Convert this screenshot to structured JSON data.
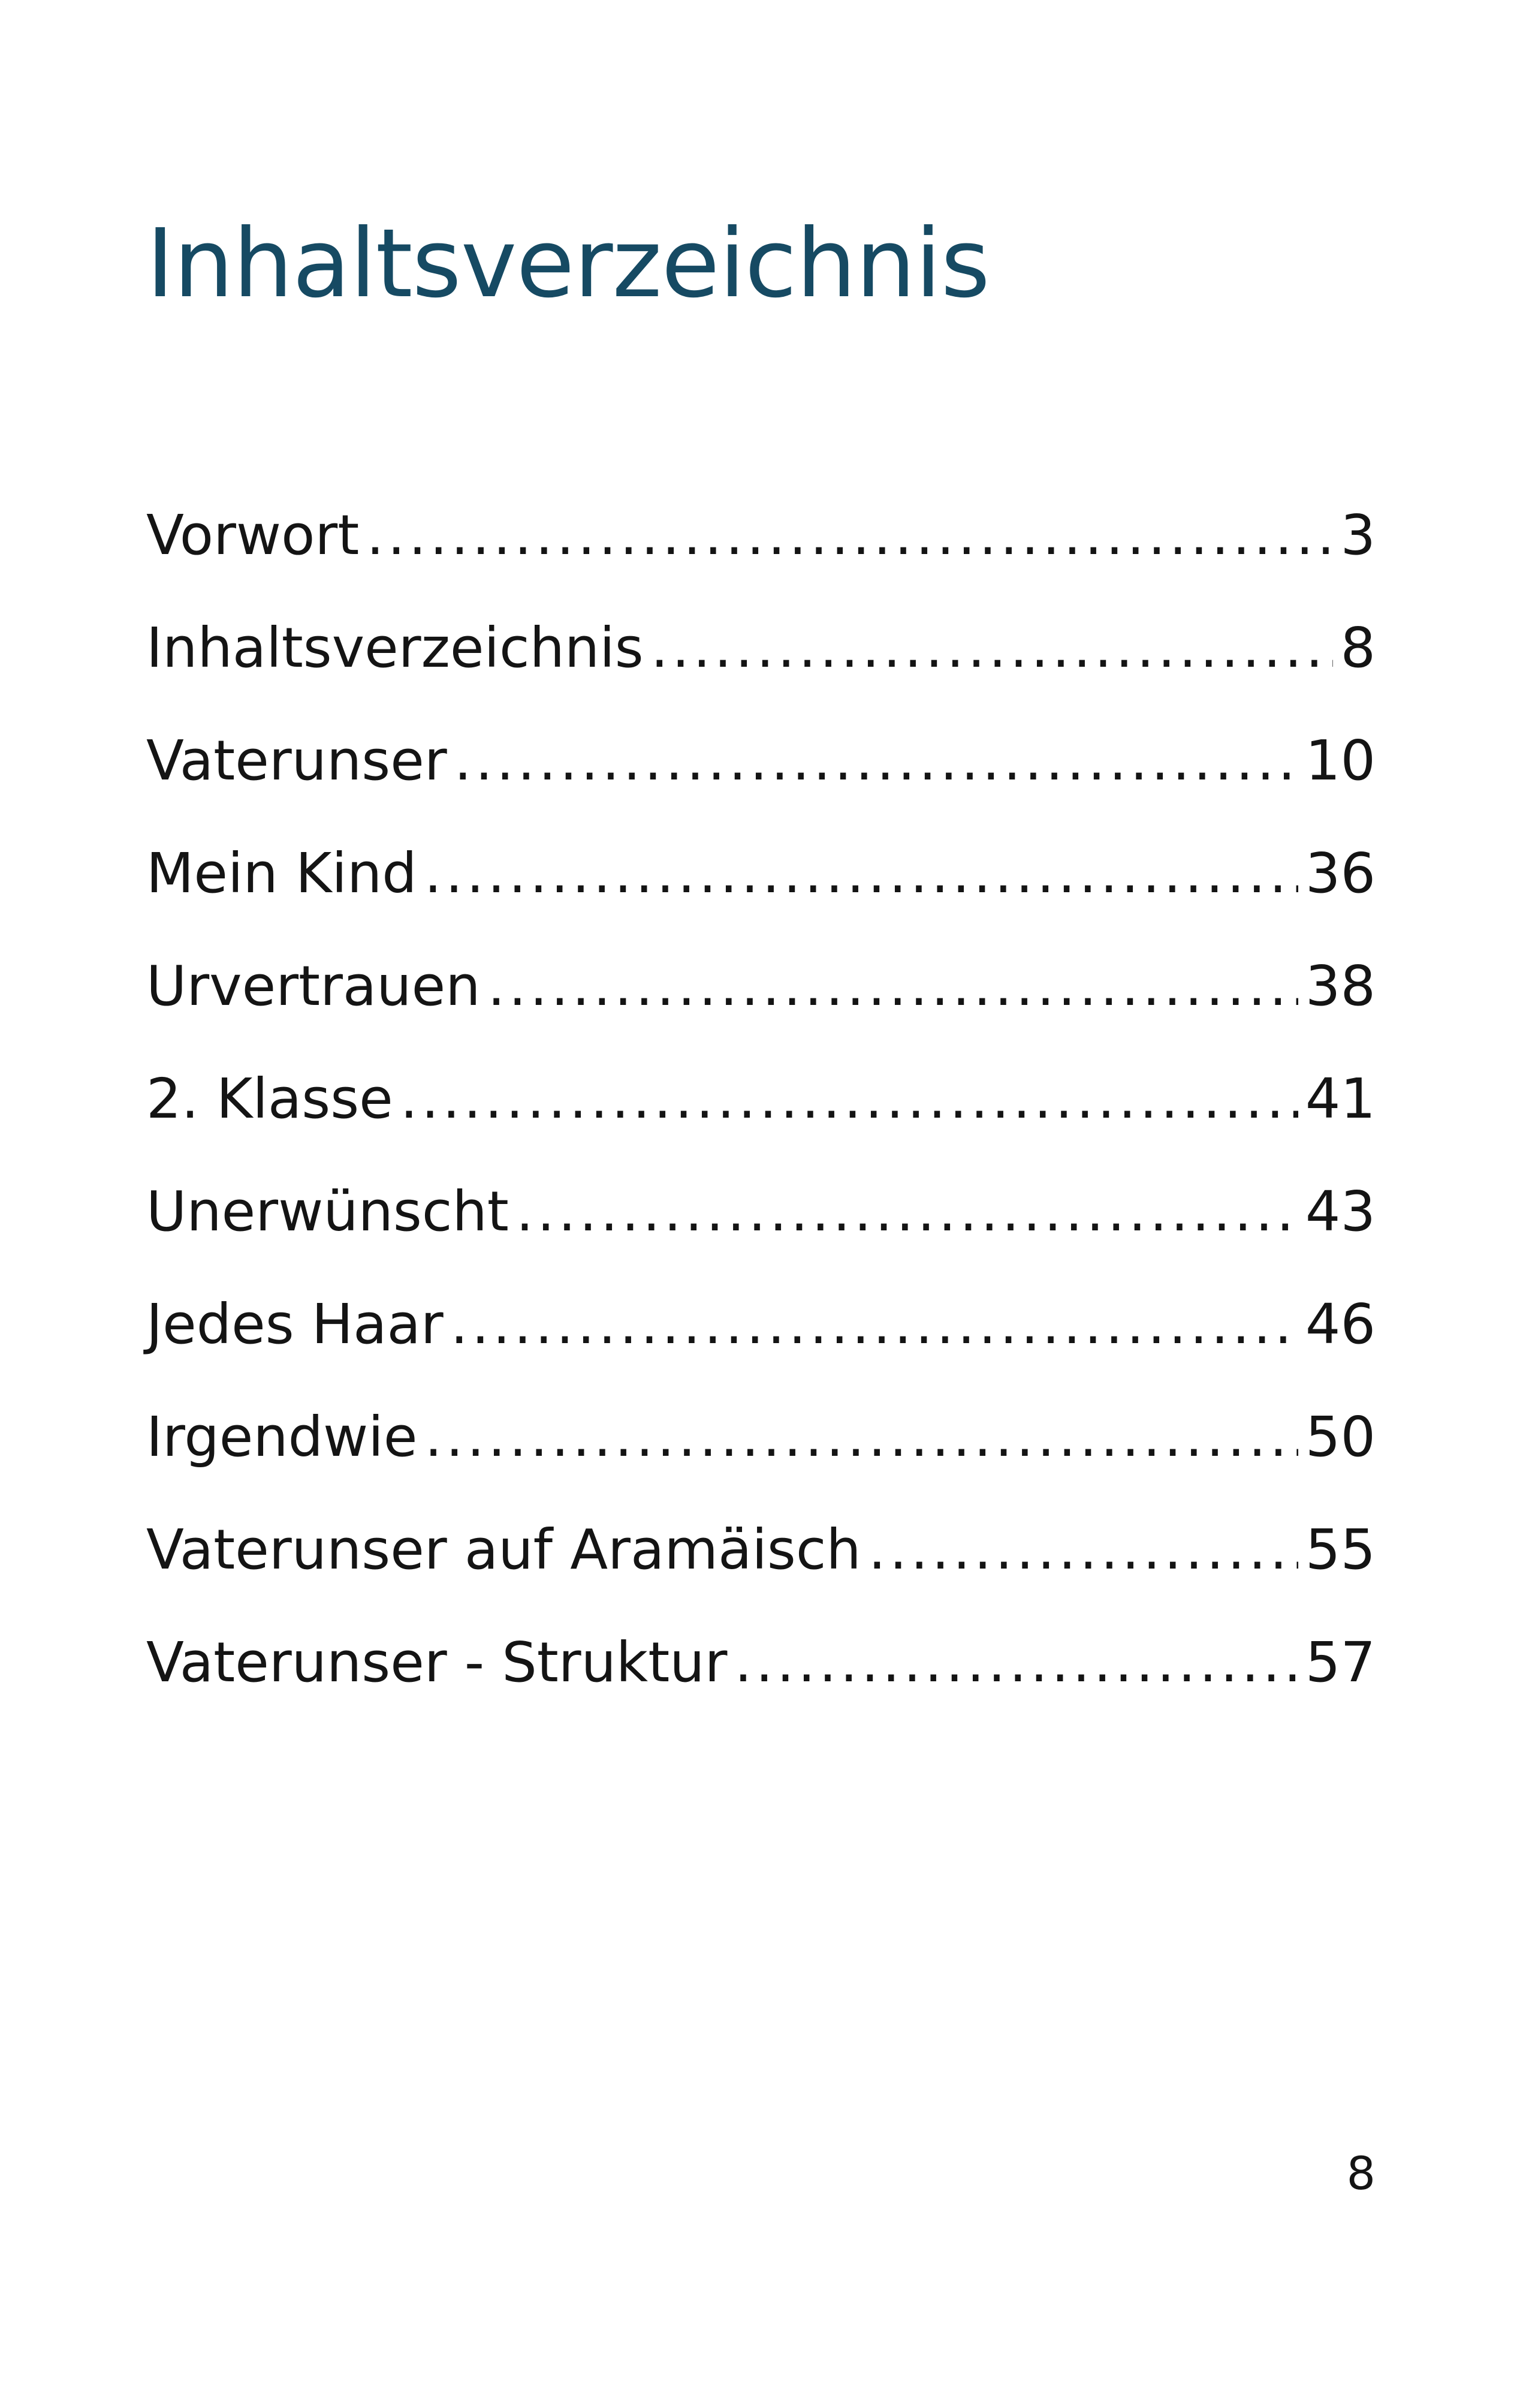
{
  "title": "Inhaltsverzeichnis",
  "toc": [
    {
      "title": "Vorwort",
      "page": "3"
    },
    {
      "title": "Inhaltsverzeichnis",
      "page": "8"
    },
    {
      "title": "Vaterunser",
      "page": "10"
    },
    {
      "title": "Mein Kind",
      "page": "36"
    },
    {
      "title": "Urvertrauen",
      "page": "38"
    },
    {
      "title": "2. Klasse",
      "page": "41"
    },
    {
      "title": "Unerwünscht",
      "page": "43"
    },
    {
      "title": "Jedes Haar",
      "page": "46"
    },
    {
      "title": "Irgendwie",
      "page": "50"
    },
    {
      "title": "Vaterunser auf Aramäisch",
      "page": "55"
    },
    {
      "title": "Vaterunser - Struktur",
      "page": "57"
    }
  ],
  "footer": {
    "page_number": "8"
  },
  "colors": {
    "title": "#164a63",
    "text": "#141414",
    "background": "#ffffff"
  }
}
